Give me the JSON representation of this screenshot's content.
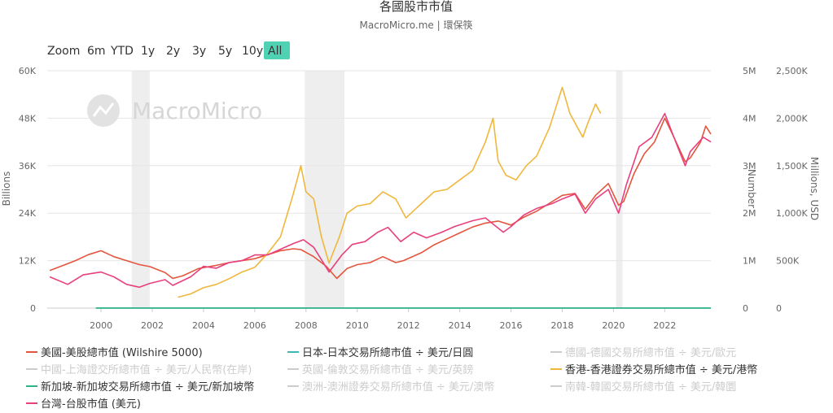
{
  "chart_data": {
    "type": "line",
    "title": "各國股市市值",
    "subtitle": "MacroMicro.me | 環保筷",
    "watermark": "MacroMicro",
    "zoom": {
      "label": "Zoom",
      "buttons": [
        "6m",
        "YTD",
        "1y",
        "2y",
        "3y",
        "5y",
        "10y",
        "All"
      ],
      "selected": "All",
      "selected_color": "#4fd1b4"
    },
    "x_ticks": [
      "2000",
      "2002",
      "2004",
      "2006",
      "2008",
      "2010",
      "2012",
      "2014",
      "2016",
      "2018",
      "2020",
      "2022"
    ],
    "xlim": [
      1997.9,
      2023.8
    ],
    "recessions": [
      [
        2001.2,
        2001.9
      ],
      [
        2007.95,
        2009.5
      ],
      [
        2020.1,
        2020.35
      ]
    ],
    "y_axes": [
      {
        "title": "Billions",
        "ticks": [
          "0",
          "12K",
          "24K",
          "36K",
          "48K",
          "60K"
        ],
        "ylim": [
          0,
          60000
        ]
      },
      {
        "title": "Number",
        "ticks": [
          "0",
          "1M",
          "2M",
          "3M",
          "4M",
          "5M"
        ],
        "ylim": [
          0,
          5000000
        ]
      },
      {
        "title": "Millions, USD",
        "ticks": [
          "0",
          "500K",
          "1,000K",
          "1,500K",
          "2,000K",
          "2,500K"
        ],
        "ylim": [
          0,
          2500000
        ]
      }
    ],
    "series": [
      {
        "name": "美國-美股總市值 (Wilshire 5000)",
        "color": "#e4553d",
        "axis": 0,
        "visible": true,
        "x": [
          1998.0,
          1998.6,
          1999.0,
          1999.5,
          2000.0,
          2000.5,
          2001.0,
          2001.5,
          2001.9,
          2002.5,
          2002.8,
          2003.2,
          2003.8,
          2004.5,
          2005.0,
          2005.5,
          2006.0,
          2006.5,
          2007.0,
          2007.5,
          2007.8,
          2008.3,
          2008.8,
          2009.2,
          2009.6,
          2010.0,
          2010.5,
          2011.0,
          2011.5,
          2011.8,
          2012.5,
          2013.0,
          2013.5,
          2014.0,
          2014.5,
          2015.0,
          2015.5,
          2016.0,
          2016.5,
          2017.0,
          2017.5,
          2018.0,
          2018.5,
          2018.9,
          2019.3,
          2019.8,
          2020.2,
          2020.4,
          2020.8,
          2021.2,
          2021.6,
          2022.0,
          2022.3,
          2022.8,
          2023.0,
          2023.4,
          2023.6,
          2023.8
        ],
        "y": [
          9500,
          11000,
          12000,
          13500,
          14500,
          13000,
          12000,
          11000,
          10500,
          9000,
          7500,
          8200,
          10000,
          10800,
          11500,
          12000,
          12500,
          13500,
          14500,
          15000,
          14800,
          13000,
          10500,
          7500,
          10000,
          11000,
          11500,
          13000,
          11500,
          12000,
          14000,
          16000,
          17500,
          19000,
          20500,
          21500,
          22000,
          21000,
          23000,
          24500,
          26500,
          28500,
          29000,
          25000,
          28500,
          31500,
          26000,
          27000,
          34000,
          39000,
          42000,
          48000,
          44000,
          37000,
          38000,
          42000,
          46000,
          44000
        ]
      },
      {
        "name": "日本-日本交易所總市值 ÷ 美元/日圓",
        "color": "#3bb8b0",
        "axis": 0,
        "visible": true,
        "x": [
          1999.8,
          2023.8
        ],
        "y": [
          30,
          30
        ]
      },
      {
        "name": "德國-德國交易所總市值 ÷ 美元/歐元",
        "color": "#cccccc",
        "axis": 0,
        "visible": false,
        "x": [],
        "y": []
      },
      {
        "name": "中國-上海證交所總市值 ÷ 美元/人民幣(在岸)",
        "color": "#cccccc",
        "axis": 0,
        "visible": false,
        "x": [],
        "y": []
      },
      {
        "name": "英國-倫敦交易所總市值 ÷ 美元/英鎊",
        "color": "#cccccc",
        "axis": 0,
        "visible": false,
        "x": [],
        "y": []
      },
      {
        "name": "香港-香港證券交易所總市值 ÷ 美元/港幣",
        "color": "#f0b73d",
        "axis": 1,
        "visible": true,
        "x": [
          2003.0,
          2003.5,
          2004.0,
          2004.5,
          2005.0,
          2005.5,
          2006.0,
          2006.5,
          2007.0,
          2007.5,
          2007.8,
          2008.0,
          2008.3,
          2008.6,
          2008.9,
          2009.3,
          2009.6,
          2010.0,
          2010.5,
          2011.0,
          2011.5,
          2011.9,
          2012.5,
          2013.0,
          2013.5,
          2014.0,
          2014.5,
          2015.0,
          2015.3,
          2015.5,
          2015.8,
          2016.2,
          2016.6,
          2017.0,
          2017.5,
          2018.0,
          2018.3,
          2018.8,
          2019.0,
          2019.3,
          2019.5
        ],
        "y": [
          230000,
          300000,
          430000,
          500000,
          620000,
          760000,
          860000,
          1150000,
          1500000,
          2400000,
          3000000,
          2450000,
          2300000,
          1500000,
          950000,
          1500000,
          2000000,
          2150000,
          2200000,
          2450000,
          2300000,
          1900000,
          2200000,
          2450000,
          2500000,
          2700000,
          2900000,
          3500000,
          4000000,
          3100000,
          2800000,
          2700000,
          3000000,
          3200000,
          3800000,
          4650000,
          4100000,
          3600000,
          3900000,
          4300000,
          4100000
        ]
      },
      {
        "name": "新加坡-新加坡交易所總市值 ÷ 美元/新加坡幣",
        "color": "#2fb287",
        "axis": 2,
        "visible": true,
        "x": [
          1999.8,
          2023.8
        ],
        "y": [
          1500,
          1500
        ]
      },
      {
        "name": "澳洲-澳洲證券交易所總市值 ÷ 美元/澳幣",
        "color": "#cccccc",
        "axis": 0,
        "visible": false,
        "x": [],
        "y": []
      },
      {
        "name": "南韓-韓國交易所總市值 ÷ 美元/韓圜",
        "color": "#cccccc",
        "axis": 0,
        "visible": false,
        "x": [],
        "y": []
      },
      {
        "name": "台灣-台股市值 (美元)",
        "color": "#e8407e",
        "axis": 2,
        "visible": true,
        "x": [
          1998.0,
          1998.7,
          1999.3,
          2000.0,
          2000.5,
          2001.0,
          2001.5,
          2001.9,
          2002.5,
          2002.8,
          2003.5,
          2004.0,
          2004.5,
          2005.0,
          2005.5,
          2006.0,
          2006.5,
          2007.0,
          2007.5,
          2007.9,
          2008.3,
          2008.9,
          2009.4,
          2009.8,
          2010.3,
          2010.8,
          2011.2,
          2011.7,
          2012.2,
          2012.7,
          2013.3,
          2013.8,
          2014.5,
          2015.0,
          2015.7,
          2016.0,
          2016.5,
          2017.0,
          2017.6,
          2018.0,
          2018.5,
          2018.9,
          2019.3,
          2019.8,
          2020.2,
          2020.5,
          2021.0,
          2021.5,
          2022.0,
          2022.5,
          2022.8,
          2023.0,
          2023.5,
          2023.8
        ],
        "y": [
          330000,
          250000,
          350000,
          380000,
          330000,
          250000,
          220000,
          260000,
          300000,
          240000,
          330000,
          440000,
          420000,
          480000,
          500000,
          560000,
          560000,
          620000,
          680000,
          720000,
          640000,
          380000,
          560000,
          670000,
          700000,
          800000,
          850000,
          700000,
          800000,
          740000,
          800000,
          860000,
          920000,
          950000,
          800000,
          860000,
          980000,
          1050000,
          1100000,
          1150000,
          1200000,
          1000000,
          1150000,
          1250000,
          1000000,
          1300000,
          1700000,
          1800000,
          2050000,
          1700000,
          1500000,
          1650000,
          1800000,
          1750000
        ]
      }
    ]
  }
}
